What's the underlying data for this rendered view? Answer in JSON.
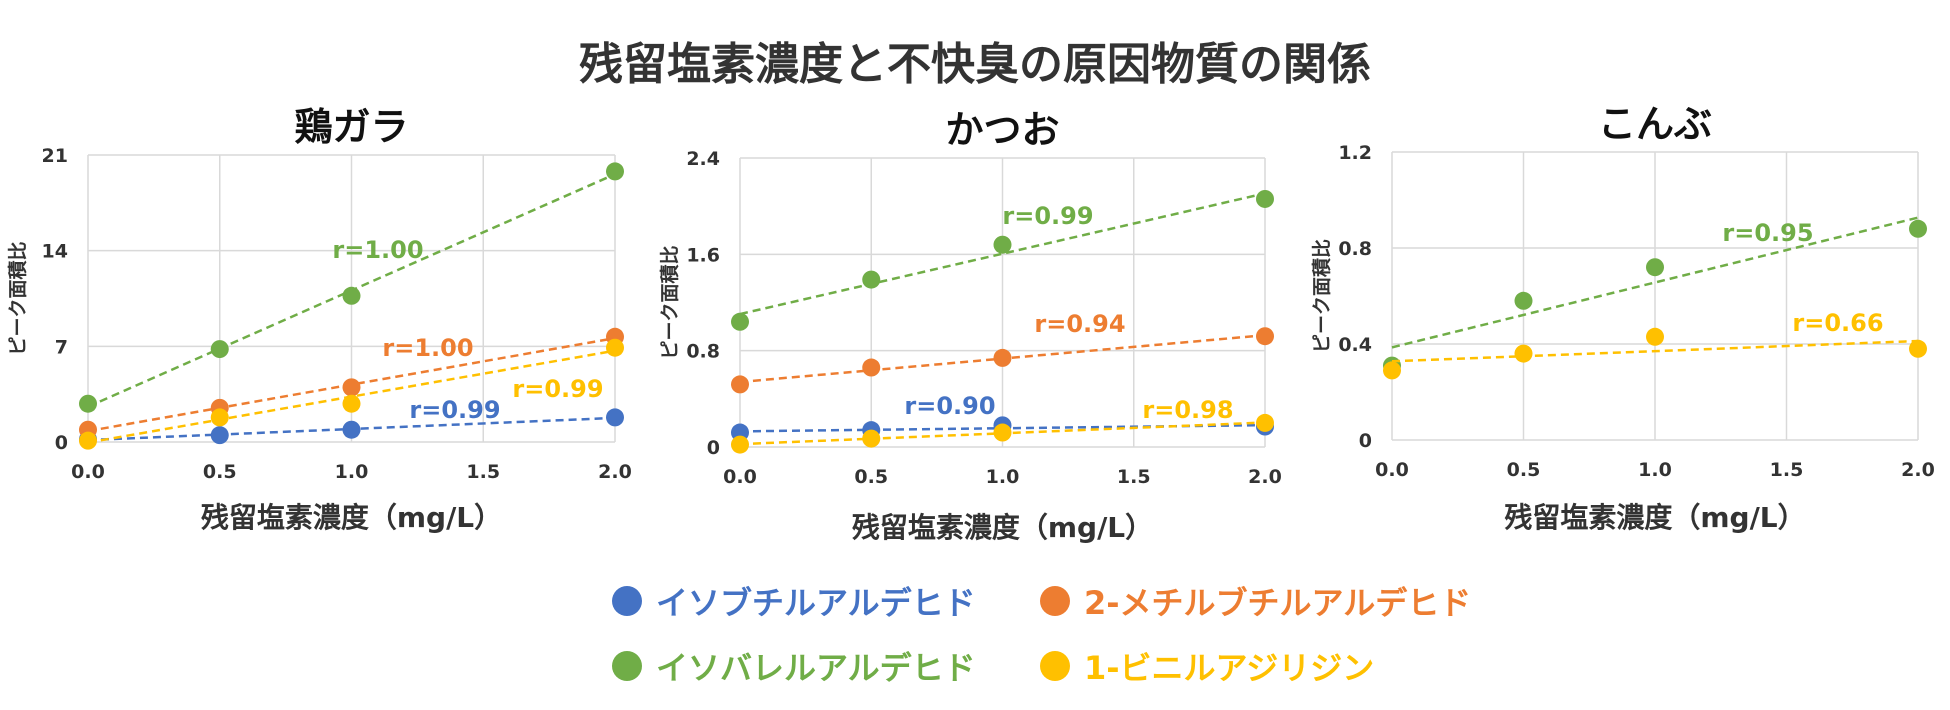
{
  "title": "残留塩素濃度と不快臭の原因物質の関係",
  "colors": {
    "blue": "#4472c4",
    "orange": "#ed7d31",
    "green": "#70ad47",
    "yellow": "#ffc000",
    "grid": "#d9d9d9",
    "text": "#333333"
  },
  "legend": [
    {
      "label": "イソブチルアルデヒド",
      "color": "#4472c4"
    },
    {
      "label": "2-メチルブチルアルデヒド",
      "color": "#ed7d31"
    },
    {
      "label": "イソバレルアルデヒド",
      "color": "#70ad47"
    },
    {
      "label": "1-ビニルアジリジン",
      "color": "#ffc000"
    }
  ],
  "chart_data": [
    {
      "type": "scatter",
      "title": "鶏ガラ",
      "xlabel": "残留塩素濃度（mg/L）",
      "ylabel": "ピーク面積比",
      "xlim": [
        0,
        2
      ],
      "ylim": [
        0,
        21
      ],
      "xticks": [
        "0.0",
        "0.5",
        "1.0",
        "1.5",
        "2.0"
      ],
      "yticks": [
        "0",
        "7",
        "14",
        "21"
      ],
      "grid": true,
      "series": [
        {
          "name": "イソブチルアルデヒド",
          "color": "#4472c4",
          "x": [
            0,
            0.5,
            1.0,
            2.0
          ],
          "y": [
            0.2,
            0.5,
            0.9,
            1.8
          ],
          "r": "r=0.99"
        },
        {
          "name": "2-メチルブチルアルデヒド",
          "color": "#ed7d31",
          "x": [
            0,
            0.5,
            1.0,
            2.0
          ],
          "y": [
            0.9,
            2.5,
            4.0,
            7.7
          ],
          "r": "r=1.00"
        },
        {
          "name": "イソバレルアルデヒド",
          "color": "#70ad47",
          "x": [
            0,
            0.5,
            1.0,
            2.0
          ],
          "y": [
            2.8,
            6.8,
            10.7,
            19.8
          ],
          "r": "r=1.00"
        },
        {
          "name": "1-ビニルアジリジン",
          "color": "#ffc000",
          "x": [
            0,
            0.5,
            1.0,
            2.0
          ],
          "y": [
            0.1,
            1.8,
            2.8,
            6.9
          ],
          "r": "r=0.99"
        }
      ]
    },
    {
      "type": "scatter",
      "title": "かつお",
      "xlabel": "残留塩素濃度（mg/L）",
      "ylabel": "ピーク面積比",
      "xlim": [
        0,
        2
      ],
      "ylim": [
        0,
        2.4
      ],
      "xticks": [
        "0.0",
        "0.5",
        "1.0",
        "1.5",
        "2.0"
      ],
      "yticks": [
        "0",
        "0.8",
        "1.6",
        "2.4"
      ],
      "grid": true,
      "series": [
        {
          "name": "イソブチルアルデヒド",
          "color": "#4472c4",
          "x": [
            0,
            0.5,
            1.0,
            2.0
          ],
          "y": [
            0.12,
            0.14,
            0.18,
            0.17
          ],
          "r": "r=0.90"
        },
        {
          "name": "2-メチルブチルアルデヒド",
          "color": "#ed7d31",
          "x": [
            0,
            0.5,
            1.0,
            2.0
          ],
          "y": [
            0.52,
            0.66,
            0.74,
            0.92
          ],
          "r": "r=0.94"
        },
        {
          "name": "イソバレルアルデヒド",
          "color": "#70ad47",
          "x": [
            0,
            0.5,
            1.0,
            2.0
          ],
          "y": [
            1.04,
            1.39,
            1.68,
            2.06
          ],
          "r": "r=0.99"
        },
        {
          "name": "1-ビニルアジリジン",
          "color": "#ffc000",
          "x": [
            0,
            0.5,
            1.0,
            2.0
          ],
          "y": [
            0.02,
            0.07,
            0.12,
            0.2
          ],
          "r": "r=0.98"
        }
      ]
    },
    {
      "type": "scatter",
      "title": "こんぶ",
      "xlabel": "残留塩素濃度（mg/L）",
      "ylabel": "ピーク面積比",
      "xlim": [
        0,
        2
      ],
      "ylim": [
        0,
        1.2
      ],
      "xticks": [
        "0.0",
        "0.5",
        "1.0",
        "1.5",
        "2.0"
      ],
      "yticks": [
        "0",
        "0.4",
        "0.8",
        "1.2"
      ],
      "grid": true,
      "series": [
        {
          "name": "イソバレルアルデヒド",
          "color": "#70ad47",
          "x": [
            0,
            0.5,
            1.0,
            2.0
          ],
          "y": [
            0.31,
            0.58,
            0.72,
            0.88
          ],
          "r": "r=0.95"
        },
        {
          "name": "1-ビニルアジリジン",
          "color": "#ffc000",
          "x": [
            0,
            0.5,
            1.0,
            2.0
          ],
          "y": [
            0.29,
            0.36,
            0.43,
            0.38
          ],
          "r": "r=0.66"
        }
      ]
    }
  ]
}
